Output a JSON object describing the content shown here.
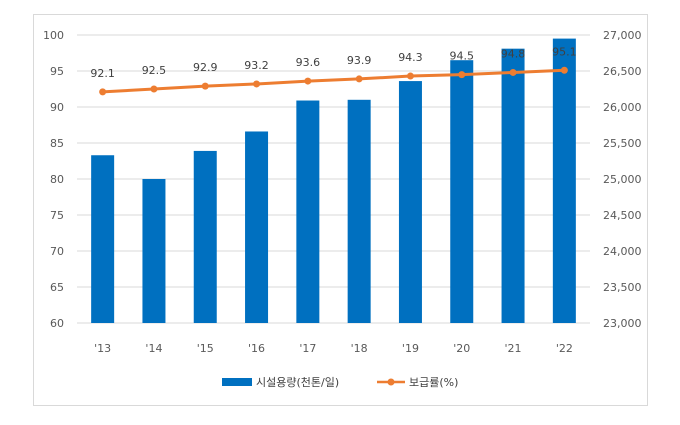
{
  "chart_data": {
    "type": "bar",
    "categories": [
      "'13",
      "'14",
      "'15",
      "'16",
      "'17",
      "'18",
      "'19",
      "'20",
      "'21",
      "'22"
    ],
    "series": [
      {
        "name": "시설용량(천톤/일)",
        "type": "bar",
        "axis": "right",
        "color": "#0070c0",
        "values": [
          25330,
          25000,
          25390,
          25660,
          26090,
          26100,
          26360,
          26650,
          26810,
          26950
        ]
      },
      {
        "name": "보급률(%)",
        "type": "line",
        "axis": "left",
        "color": "#ed7d31",
        "values": [
          92.1,
          92.5,
          92.9,
          93.2,
          93.6,
          93.9,
          94.3,
          94.5,
          94.8,
          95.1
        ],
        "labels": [
          "92.1",
          "92.5",
          "92.9",
          "93.2",
          "93.6",
          "93.9",
          "94.3",
          "94.5",
          "94.8",
          "95.1"
        ]
      }
    ],
    "y_left": {
      "min": 60,
      "max": 100,
      "ticks": [
        "60",
        "65",
        "70",
        "75",
        "80",
        "85",
        "90",
        "95",
        "100"
      ]
    },
    "y_right": {
      "min": 23000,
      "max": 27000,
      "ticks": [
        "23,000",
        "23,500",
        "24,000",
        "24,500",
        "25,000",
        "25,500",
        "26,000",
        "26,500",
        "27,000"
      ]
    },
    "grid": true,
    "legend_position": "bottom",
    "title": "",
    "xlabel": "",
    "ylabel": ""
  }
}
